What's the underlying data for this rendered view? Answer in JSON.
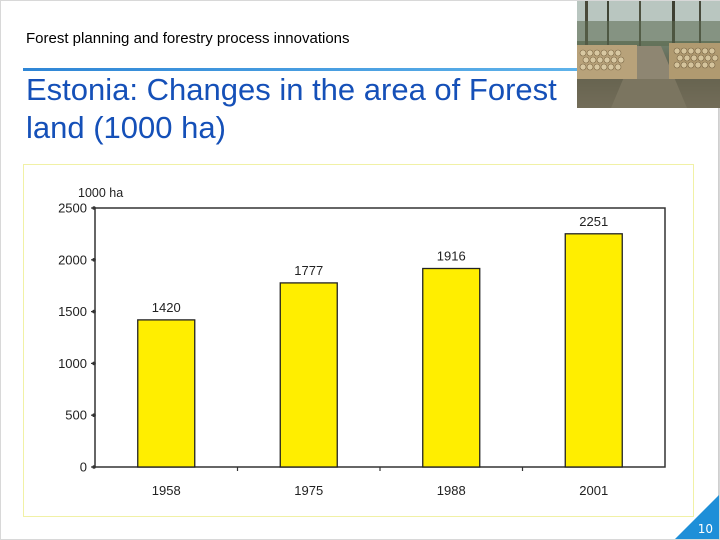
{
  "header": {
    "subtitle": "Forest planning and forestry process innovations",
    "title": "Estonia: Changes in the area of Forest land (1000 ha)",
    "photo_icon": "forest-road-log-piles-photo"
  },
  "footer": {
    "page_number": "10"
  },
  "colors": {
    "title": "#1550b8",
    "rule": "#2f86d6",
    "bar_fill": "#ffee00",
    "bar_stroke": "#222222",
    "frame": "#f1f1a6",
    "corner": "#1e8fd8"
  },
  "chart_data": {
    "type": "bar",
    "title": "",
    "ylabel": "1000 ha",
    "xlabel": "",
    "categories": [
      "1958",
      "1975",
      "1988",
      "2001"
    ],
    "values": [
      1420,
      1777,
      1916,
      2251
    ],
    "value_labels": [
      "1420",
      "1777",
      "1916",
      "2251"
    ],
    "yticks": [
      0,
      500,
      1000,
      1500,
      2000,
      2500
    ],
    "ytick_labels": [
      "0",
      "500",
      "1000",
      "1500",
      "2000",
      "2500"
    ],
    "ylim": [
      0,
      2500
    ],
    "grid": false,
    "legend": "none"
  }
}
